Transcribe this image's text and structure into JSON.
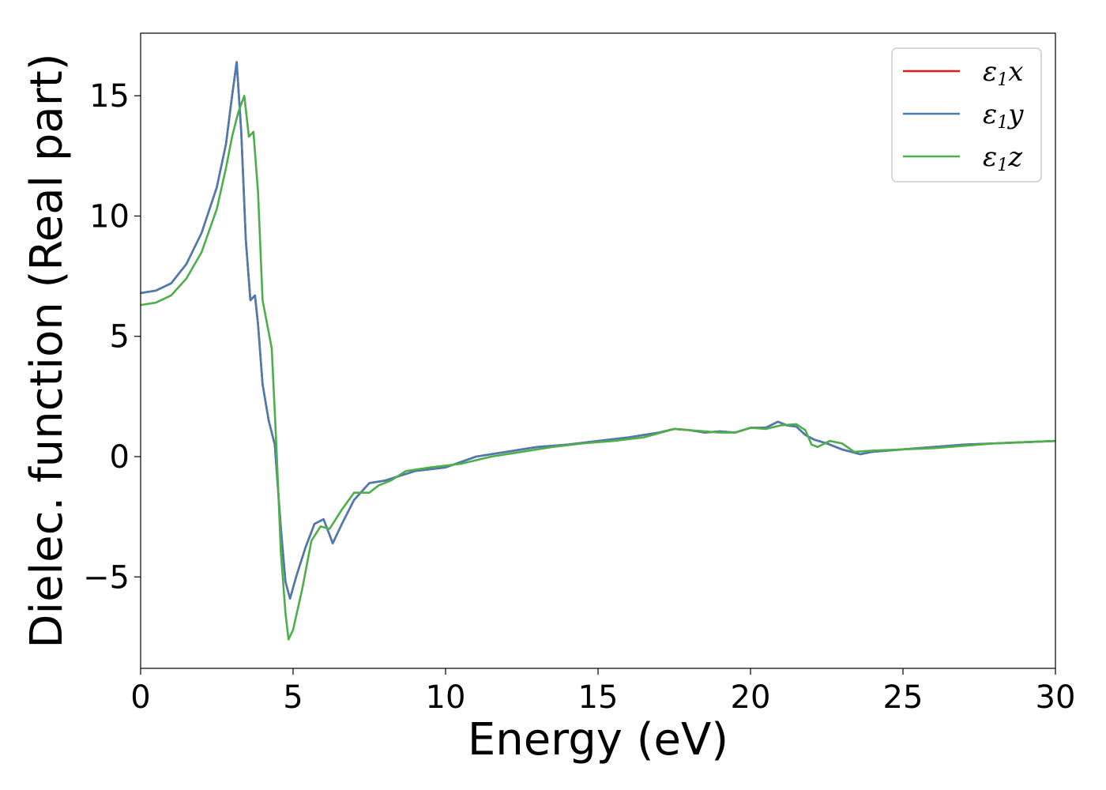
{
  "chart_data": {
    "type": "line",
    "title": "",
    "xlabel": "Energy (eV)",
    "ylabel": "Dielec. function (Real part)",
    "xlim": [
      0,
      30
    ],
    "ylim": [
      -8.8,
      17.6
    ],
    "xticks": [
      0,
      5,
      10,
      15,
      20,
      25,
      30
    ],
    "xtick_labels": [
      "0",
      "5",
      "10",
      "15",
      "20",
      "25",
      "30"
    ],
    "yticks": [
      -5,
      0,
      5,
      10,
      15
    ],
    "ytick_labels": [
      "−5",
      "0",
      "5",
      "10",
      "15"
    ],
    "grid": false,
    "legend_position": "top-right",
    "series": [
      {
        "name": "ε1x",
        "legend_symbol": "ε",
        "legend_sub": "1",
        "legend_var": "x",
        "color": "#e41a1c",
        "x": [
          0,
          0.5,
          1.0,
          1.5,
          2.0,
          2.5,
          2.8,
          3.0,
          3.15,
          3.3,
          3.45,
          3.6,
          3.75,
          3.85,
          4.0,
          4.2,
          4.4,
          4.6,
          4.75,
          4.9,
          5.1,
          5.4,
          5.7,
          6.0,
          6.3,
          6.6,
          7.0,
          7.5,
          8.0,
          8.5,
          9.0,
          10.0,
          11.0,
          12.0,
          13.0,
          14.0,
          15.0,
          16.0,
          17.0,
          17.5,
          18.0,
          18.5,
          19.0,
          19.5,
          20.0,
          20.5,
          20.9,
          21.2,
          21.5,
          21.8,
          22.1,
          22.5,
          23.0,
          23.6,
          24.0,
          25.0,
          26.0,
          27.0,
          28.0,
          29.0,
          30.0
        ],
        "y": [
          6.8,
          6.9,
          7.2,
          8.0,
          9.3,
          11.2,
          13.0,
          15.0,
          16.4,
          13.5,
          9.0,
          6.5,
          6.7,
          5.5,
          3.0,
          1.5,
          0.5,
          -3.0,
          -5.2,
          -5.9,
          -5.0,
          -3.8,
          -2.8,
          -2.6,
          -3.6,
          -2.8,
          -1.8,
          -1.1,
          -1.0,
          -0.8,
          -0.6,
          -0.45,
          0.0,
          0.2,
          0.4,
          0.5,
          0.65,
          0.8,
          1.0,
          1.15,
          1.1,
          1.0,
          1.05,
          1.0,
          1.2,
          1.2,
          1.45,
          1.3,
          1.25,
          0.9,
          0.7,
          0.55,
          0.3,
          0.1,
          0.2,
          0.3,
          0.4,
          0.5,
          0.55,
          0.6,
          0.65
        ]
      },
      {
        "name": "ε1y",
        "legend_symbol": "ε",
        "legend_sub": "1",
        "legend_var": "y",
        "color": "#4a7cb0",
        "x": [
          0,
          0.5,
          1.0,
          1.5,
          2.0,
          2.5,
          2.8,
          3.0,
          3.15,
          3.3,
          3.45,
          3.6,
          3.75,
          3.85,
          4.0,
          4.2,
          4.4,
          4.6,
          4.75,
          4.9,
          5.1,
          5.4,
          5.7,
          6.0,
          6.3,
          6.6,
          7.0,
          7.5,
          8.0,
          8.5,
          9.0,
          10.0,
          11.0,
          12.0,
          13.0,
          14.0,
          15.0,
          16.0,
          17.0,
          17.5,
          18.0,
          18.5,
          19.0,
          19.5,
          20.0,
          20.5,
          20.9,
          21.2,
          21.5,
          21.8,
          22.1,
          22.5,
          23.0,
          23.6,
          24.0,
          25.0,
          26.0,
          27.0,
          28.0,
          29.0,
          30.0
        ],
        "y": [
          6.8,
          6.9,
          7.2,
          8.0,
          9.3,
          11.2,
          13.0,
          15.0,
          16.4,
          13.5,
          9.0,
          6.5,
          6.7,
          5.5,
          3.0,
          1.5,
          0.5,
          -3.0,
          -5.2,
          -5.9,
          -5.0,
          -3.8,
          -2.8,
          -2.6,
          -3.6,
          -2.8,
          -1.8,
          -1.1,
          -1.0,
          -0.8,
          -0.6,
          -0.45,
          0.0,
          0.2,
          0.4,
          0.5,
          0.65,
          0.8,
          1.0,
          1.15,
          1.1,
          1.0,
          1.05,
          1.0,
          1.2,
          1.2,
          1.45,
          1.3,
          1.25,
          0.9,
          0.7,
          0.55,
          0.3,
          0.1,
          0.2,
          0.3,
          0.4,
          0.5,
          0.55,
          0.6,
          0.65
        ]
      },
      {
        "name": "ε1z",
        "legend_symbol": "ε",
        "legend_sub": "1",
        "legend_var": "z",
        "color": "#4daf4a",
        "x": [
          0,
          0.5,
          1.0,
          1.5,
          2.0,
          2.5,
          2.8,
          3.0,
          3.2,
          3.4,
          3.55,
          3.7,
          3.85,
          4.0,
          4.15,
          4.3,
          4.45,
          4.6,
          4.75,
          4.85,
          5.0,
          5.3,
          5.6,
          5.9,
          6.2,
          6.6,
          7.0,
          7.5,
          7.8,
          8.2,
          8.7,
          9.5,
          10.5,
          11.5,
          12.5,
          13.5,
          14.5,
          15.5,
          16.5,
          17.5,
          18.0,
          18.5,
          19.0,
          19.5,
          20.0,
          20.5,
          21.0,
          21.5,
          21.8,
          22.0,
          22.2,
          22.6,
          23.0,
          23.4,
          24.0,
          25.0,
          26.0,
          27.0,
          28.0,
          29.0,
          30.0
        ],
        "y": [
          6.3,
          6.4,
          6.7,
          7.4,
          8.5,
          10.3,
          12.0,
          13.3,
          14.3,
          15.0,
          13.3,
          13.5,
          11.0,
          6.5,
          5.5,
          4.5,
          0.5,
          -4.0,
          -6.5,
          -7.6,
          -7.2,
          -5.5,
          -3.5,
          -2.9,
          -3.0,
          -2.2,
          -1.5,
          -1.5,
          -1.2,
          -1.0,
          -0.6,
          -0.45,
          -0.3,
          0.0,
          0.2,
          0.4,
          0.55,
          0.65,
          0.8,
          1.15,
          1.1,
          1.05,
          1.0,
          1.0,
          1.2,
          1.15,
          1.3,
          1.35,
          1.1,
          0.5,
          0.4,
          0.65,
          0.55,
          0.2,
          0.25,
          0.3,
          0.35,
          0.45,
          0.55,
          0.6,
          0.65
        ]
      }
    ]
  }
}
